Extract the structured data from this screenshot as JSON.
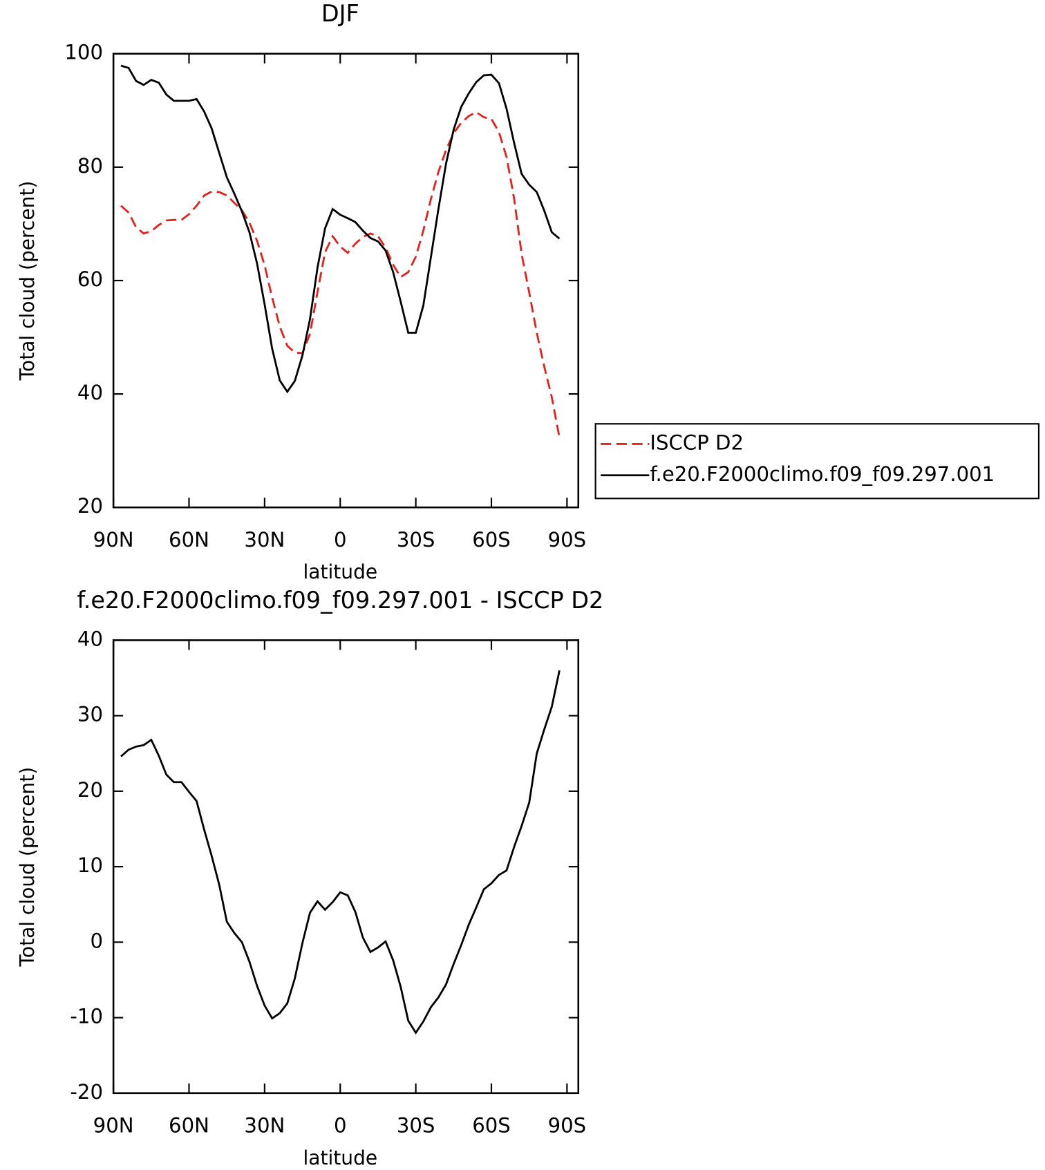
{
  "chart_data": [
    {
      "type": "line",
      "title": "DJF",
      "xlabel": "latitude",
      "ylabel": "Total cloud (percent)",
      "x": [
        87,
        84,
        81,
        78,
        75,
        72,
        69,
        66,
        63,
        60,
        57,
        54,
        51,
        48,
        45,
        42,
        39,
        36,
        33,
        30,
        27,
        24,
        21,
        18,
        15,
        12,
        9,
        6,
        3,
        0,
        -3,
        -6,
        -9,
        -12,
        -15,
        -18,
        -21,
        -24,
        -27,
        -30,
        -33,
        -36,
        -39,
        -42,
        -45,
        -48,
        -51,
        -54,
        -57,
        -60,
        -63,
        -66,
        -69,
        -72,
        -75,
        -78,
        -81,
        -84,
        -87
      ],
      "series": [
        {
          "name": "ISCCP D2",
          "color": "#e8201c",
          "dash": true,
          "values": [
            73.2,
            72,
            69.4,
            68.3,
            68.7,
            69.8,
            70.6,
            70.7,
            70.7,
            71.7,
            73.2,
            75,
            75.7,
            75.6,
            75,
            73.7,
            72.4,
            70.2,
            67,
            62.7,
            57,
            51.9,
            48.5,
            47.3,
            47.2,
            50.6,
            58,
            65,
            67.8,
            66,
            64.9,
            66.5,
            67.7,
            68.3,
            67.8,
            65.8,
            62.8,
            60.6,
            61.5,
            64.2,
            68.8,
            74.4,
            79.2,
            83,
            86,
            87.8,
            89,
            89.7,
            88.8,
            88.5,
            86.2,
            81.8,
            74.5,
            64.7,
            57.9,
            50.8,
            44.8,
            39.4,
            32.3
          ]
        },
        {
          "name": "f.e20.F2000climo.f09_f09.297.001",
          "color": "#000000",
          "dash": false,
          "values": [
            97.9,
            97.5,
            95.2,
            94.5,
            95.4,
            94.9,
            92.8,
            91.7,
            91.7,
            91.7,
            92,
            89.8,
            86.8,
            82.5,
            78.2,
            75.3,
            72.2,
            68.5,
            63,
            55.8,
            48,
            42.4,
            40.4,
            42.3,
            46.8,
            53.2,
            62.3,
            69.2,
            72.6,
            71.6,
            71,
            70.3,
            68.8,
            67.5,
            66.9,
            65.3,
            61.5,
            56.3,
            50.8,
            50.8,
            55.6,
            64.2,
            72.7,
            80.6,
            86.6,
            90.6,
            93,
            95,
            96.2,
            96.3,
            94.8,
            90.3,
            84.3,
            78.8,
            76.9,
            75.6,
            72.3,
            68.5,
            67.4
          ]
        }
      ],
      "xlim": [
        90,
        -94.5
      ],
      "xticks": [
        {
          "value": 90,
          "label": "90N"
        },
        {
          "value": 60,
          "label": "60N"
        },
        {
          "value": 30,
          "label": "30N"
        },
        0,
        {
          "value": -30,
          "label": "30S"
        },
        {
          "value": -60,
          "label": "60S"
        },
        {
          "value": -90,
          "label": "90S"
        }
      ],
      "ylim": [
        20,
        100
      ],
      "yticks": [
        20,
        40,
        60,
        80,
        100
      ],
      "legend": "right"
    },
    {
      "type": "line",
      "title": "f.e20.F2000climo.f09_f09.297.001 - ISCCP D2",
      "xlabel": "latitude",
      "ylabel": "Total cloud (percent)",
      "x": [
        87,
        84,
        81,
        78,
        75,
        72,
        69,
        66,
        63,
        60,
        57,
        54,
        51,
        48,
        45,
        42,
        39,
        36,
        33,
        30,
        27,
        24,
        21,
        18,
        15,
        12,
        9,
        6,
        3,
        0,
        -3,
        -6,
        -9,
        -12,
        -15,
        -18,
        -21,
        -24,
        -27,
        -30,
        -33,
        -36,
        -39,
        -42,
        -45,
        -48,
        -51,
        -54,
        -57,
        -60,
        -63,
        -66,
        -69,
        -72,
        -75,
        -78,
        -81,
        -84,
        -87
      ],
      "values": [
        24.6,
        25.5,
        25.9,
        26.1,
        26.8,
        24.7,
        22.2,
        21.2,
        21.2,
        19.9,
        18.7,
        14.9,
        11.4,
        7.6,
        2.7,
        1.2,
        0,
        -2.6,
        -5.8,
        -8.4,
        -10.1,
        -9.4,
        -8.1,
        -4.8,
        -0.1,
        3.9,
        5.4,
        4.3,
        5.3,
        6.6,
        6.2,
        4,
        0.6,
        -1.3,
        -0.7,
        0.1,
        -2.4,
        -5.9,
        -10.4,
        -12,
        -10.5,
        -8.6,
        -7.3,
        -5.6,
        -2.9,
        -0.4,
        2.3,
        4.6,
        7,
        7.8,
        8.9,
        9.5,
        12.6,
        15.4,
        18.5,
        25,
        28.2,
        31.2,
        36
      ],
      "color": "#000000",
      "xlim": [
        90,
        -94.5
      ],
      "xticks": [
        {
          "value": 90,
          "label": "90N"
        },
        {
          "value": 60,
          "label": "60N"
        },
        {
          "value": 30,
          "label": "30N"
        },
        0,
        {
          "value": -30,
          "label": "30S"
        },
        {
          "value": -60,
          "label": "60S"
        },
        {
          "value": -90,
          "label": "90S"
        }
      ],
      "ylim": [
        -20,
        40
      ],
      "yticks": [
        -20,
        -10,
        0,
        10,
        20,
        30,
        40
      ]
    }
  ]
}
